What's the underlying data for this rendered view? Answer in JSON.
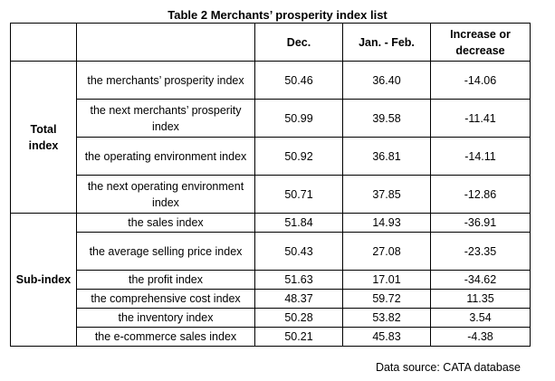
{
  "title": "Table 2 Merchants’ prosperity index list",
  "columns": {
    "group": "",
    "index": "",
    "dec": "Dec.",
    "janfeb": "Jan. - Feb.",
    "change": "Increase or decrease"
  },
  "groups": {
    "total": "Total index",
    "sub": "Sub-index"
  },
  "rows": [
    {
      "name": "the merchants’ prosperity index",
      "dec": "50.46",
      "janfeb": "36.40",
      "change": "-14.06"
    },
    {
      "name": "the next merchants’ prosperity index",
      "dec": "50.99",
      "janfeb": "39.58",
      "change": "-11.41"
    },
    {
      "name": "the operating environment index",
      "dec": "50.92",
      "janfeb": "36.81",
      "change": "-14.11"
    },
    {
      "name": "the next operating environment index",
      "dec": "50.71",
      "janfeb": "37.85",
      "change": "-12.86"
    },
    {
      "name": "the sales index",
      "dec": "51.84",
      "janfeb": "14.93",
      "change": "-36.91"
    },
    {
      "name": "the average selling price index",
      "dec": "50.43",
      "janfeb": "27.08",
      "change": "-23.35"
    },
    {
      "name": "the profit index",
      "dec": "51.63",
      "janfeb": "17.01",
      "change": "-34.62"
    },
    {
      "name": "the comprehensive cost index",
      "dec": "48.37",
      "janfeb": "59.72",
      "change": "11.35"
    },
    {
      "name": "the inventory index",
      "dec": "50.28",
      "janfeb": "53.82",
      "change": "3.54"
    },
    {
      "name": "the e-commerce sales index",
      "dec": "50.21",
      "janfeb": "45.83",
      "change": "-4.38"
    }
  ],
  "source": "Data source: CATA database"
}
